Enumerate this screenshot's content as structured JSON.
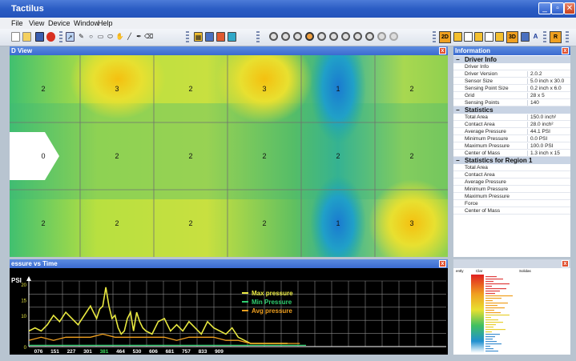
{
  "window": {
    "title": "Tactilus",
    "buttons": {
      "minimize": "_",
      "maximize": "▫",
      "close": "✕"
    }
  },
  "menu": [
    "File",
    "View",
    "Device",
    "Window",
    "Help"
  ],
  "toolbar": {
    "box_labels": [
      "2D",
      "3D",
      "A",
      "R"
    ]
  },
  "map_panel": {
    "title": "D View",
    "grid_values": [
      [
        "2",
        "3",
        "2",
        "3",
        "1",
        "2"
      ],
      [
        "0",
        "2",
        "2",
        "2",
        "2",
        "2"
      ],
      [
        "2",
        "2",
        "2",
        "2",
        "1",
        "3"
      ]
    ]
  },
  "info_panel": {
    "title": "Information",
    "sections": [
      {
        "heading": "Driver Info",
        "rows": [
          {
            "label": "Driver Info",
            "value": ""
          },
          {
            "label": "Driver Version",
            "value": "2.0.2"
          },
          {
            "label": "Sensor Size",
            "value": "5.0 inch x 30.0"
          },
          {
            "label": "Sensing Point Size",
            "value": "0.2 inch x 6.0"
          },
          {
            "label": "Grid",
            "value": "28 x 5"
          },
          {
            "label": "Sensing Points",
            "value": "140"
          }
        ]
      },
      {
        "heading": "Statistics",
        "rows": [
          {
            "label": "Total Area",
            "value": "150.0 inch²"
          },
          {
            "label": "Contact Area",
            "value": "28.0 inch²"
          },
          {
            "label": "Average Pressure",
            "value": "44.1 PSI"
          },
          {
            "label": "Minimum Pressure",
            "value": "0.0 PSI"
          },
          {
            "label": "Maximum Pressure",
            "value": "100.0 PSI"
          },
          {
            "label": "Center of Mass",
            "value": "1.3 inch x 15"
          }
        ]
      },
      {
        "heading": "Statistics for Region 1",
        "rows": [
          {
            "label": "Total Area",
            "value": ""
          },
          {
            "label": "Contact Area",
            "value": ""
          },
          {
            "label": "Average Pressure",
            "value": ""
          },
          {
            "label": "Minimum Pressure",
            "value": ""
          },
          {
            "label": "Maximum Pressure",
            "value": ""
          },
          {
            "label": "Force",
            "value": ""
          },
          {
            "label": "Center of Mass",
            "value": ""
          }
        ]
      }
    ]
  },
  "chart_panel": {
    "title": "essure vs Time"
  },
  "hist_panel": {
    "col1": "ently",
    "col2": "Clar",
    "col3": "Solidas"
  },
  "chart_data": {
    "type": "line",
    "ylabel": "PSI",
    "ylim": [
      0,
      20
    ],
    "yticks": [
      0,
      10,
      15,
      20
    ],
    "xtick_labels": [
      "076",
      "151",
      "227",
      "301",
      "381",
      "464",
      "530",
      "606",
      "681",
      "757",
      "833",
      "909"
    ],
    "highlight_tick": "381",
    "grid": true,
    "legend_position": "center-right",
    "series": [
      {
        "name": "Max pressure",
        "color": "#e8e840",
        "x": [
          0,
          20,
          40,
          60,
          80,
          100,
          120,
          140,
          160,
          180,
          200,
          210,
          220,
          230,
          240,
          250,
          260,
          270,
          280,
          290,
          300,
          310,
          320,
          330,
          340,
          350,
          360,
          370,
          380,
          400,
          420,
          440,
          460,
          480,
          500,
          520,
          540,
          560,
          580,
          600,
          620,
          640,
          660,
          680,
          700,
          720,
          740,
          760,
          780,
          800,
          820,
          840
        ],
        "values": [
          5,
          6,
          5,
          7,
          10,
          8,
          11,
          9,
          7,
          10,
          13,
          11,
          9,
          12,
          13,
          19,
          13,
          9,
          10,
          6,
          4,
          5,
          9,
          11,
          5,
          11,
          8,
          6,
          5,
          4,
          8,
          9,
          5,
          7,
          5,
          8,
          6,
          4,
          8,
          6,
          5,
          4,
          6,
          3,
          2,
          1,
          1,
          1,
          1,
          1,
          1,
          1
        ]
      },
      {
        "name": "Min Pressure",
        "color": "#30d070",
        "x": [
          0,
          100,
          200,
          300,
          400,
          500,
          600,
          700,
          800,
          900
        ],
        "values": [
          0.4,
          0.4,
          0.4,
          0.4,
          0.4,
          0.4,
          0.4,
          0.4,
          0.4,
          0.4
        ]
      },
      {
        "name": "Avg pressure",
        "color": "#f0a020",
        "x": [
          0,
          40,
          80,
          120,
          160,
          200,
          240,
          280,
          320,
          360,
          400,
          440,
          480,
          520,
          560,
          600,
          640,
          680,
          720,
          760,
          800,
          840,
          880
        ],
        "values": [
          2,
          3,
          2,
          3,
          3,
          3,
          4,
          3,
          3,
          3,
          3,
          3,
          2,
          3,
          3,
          3,
          2,
          2,
          1,
          1,
          1,
          1,
          1
        ]
      }
    ]
  }
}
